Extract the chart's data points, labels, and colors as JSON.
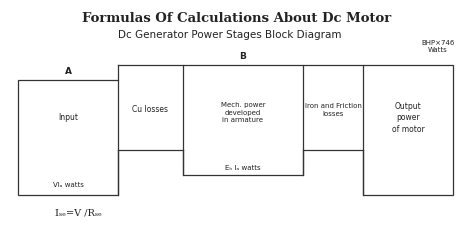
{
  "title": "Formulas Of Calculations About Dc Motor",
  "subtitle": "Dc Generator Power Stages Block Diagram",
  "bg_color": "#ffffff",
  "text_color": "#222222",
  "box_color": "#333333",
  "label_A": "A",
  "label_B": "B",
  "label_BHP": "BHP×746\nWatts",
  "block1_label": "Input",
  "block1_bottom": "VIₐ watts",
  "block2_label": "Cu losses",
  "block3_label": "Mech. power\ndeveloped\nin armature",
  "block3_bottom": "Eₕ Iₐ watts",
  "block4_label": "Iron and Friction\nlosses",
  "block5_label": "Output\npower\nof motor",
  "formula": "Iₛₑ=V /Rₛₑ"
}
